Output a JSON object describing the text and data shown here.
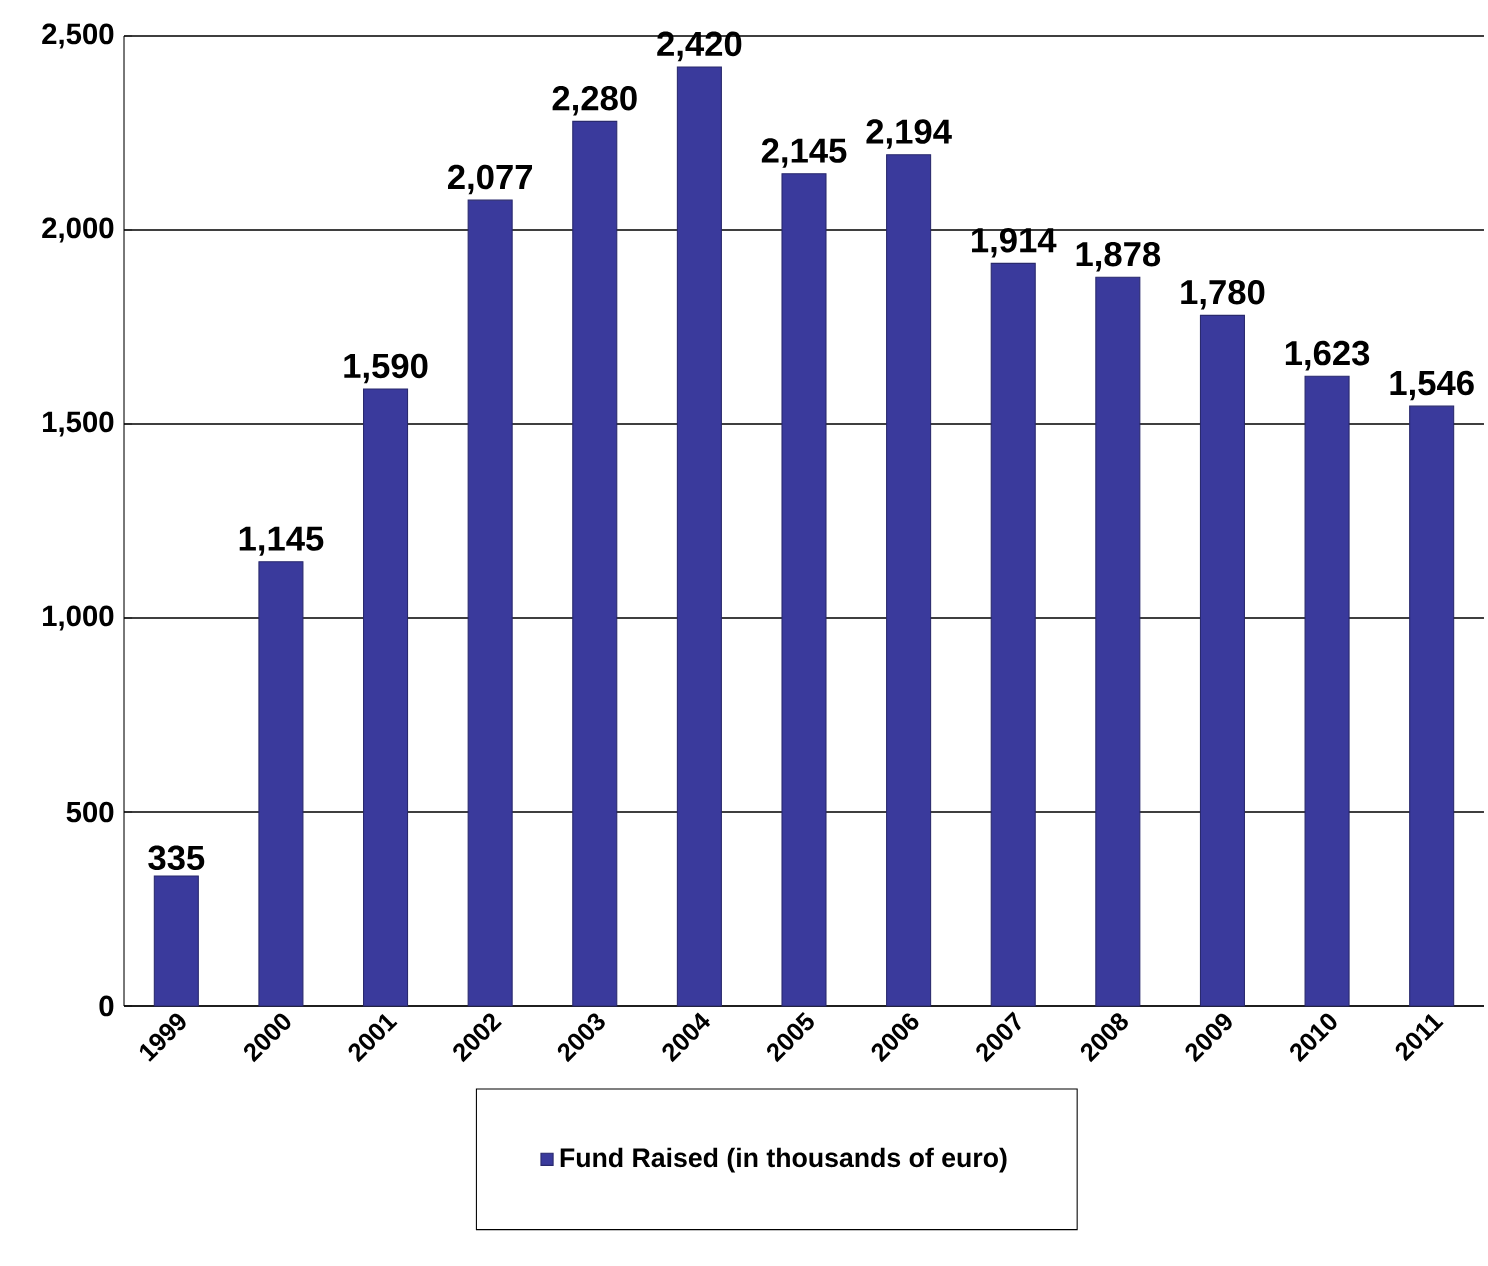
{
  "chart_data": {
    "type": "bar",
    "categories": [
      "1999",
      "2000",
      "2001",
      "2002",
      "2003",
      "2004",
      "2005",
      "2006",
      "2007",
      "2008",
      "2009",
      "2010",
      "2011"
    ],
    "series": [
      {
        "name": "Fund Raised (in thousands of euro)",
        "color": "#3a3a9c",
        "values": [
          335,
          1145,
          1590,
          2077,
          2280,
          2420,
          2145,
          2194,
          1914,
          1878,
          1780,
          1623,
          1546
        ],
        "value_labels": [
          "335",
          "1,145",
          "1,590",
          "2,077",
          "2,280",
          "2,420",
          "2,145",
          "2,194",
          "1,914",
          "1,878",
          "1,780",
          "1,623",
          "1,546"
        ]
      }
    ],
    "ylim": [
      0,
      2500
    ],
    "yticks": [
      {
        "value": 0,
        "label": "0"
      },
      {
        "value": 500,
        "label": "500"
      },
      {
        "value": 1000,
        "label": "1,000"
      },
      {
        "value": 1500,
        "label": "1,500"
      },
      {
        "value": 2000,
        "label": "2,000"
      },
      {
        "value": 2500,
        "label": "2,500"
      }
    ],
    "grid": "y",
    "legend": "bottom"
  }
}
